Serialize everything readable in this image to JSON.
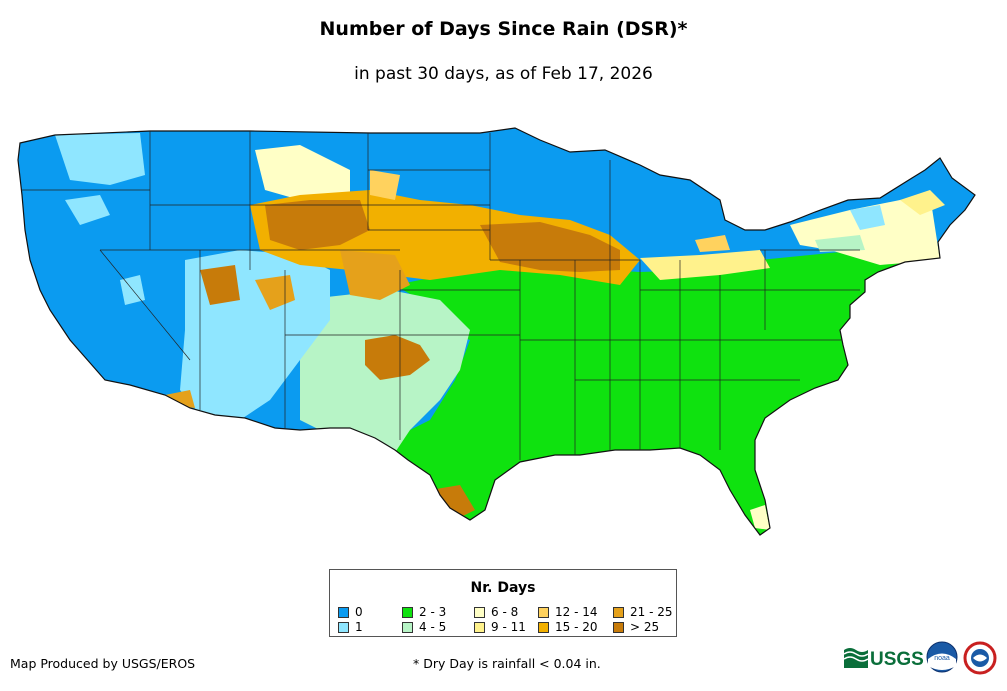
{
  "header": {
    "title": "Number of Days Since Rain (DSR)*",
    "subtitle": "in past 30 days, as of Feb 17, 2026"
  },
  "map": {
    "region": "Contiguous United States",
    "colors": {
      "c0": "#0b9bf0",
      "c1": "#8fe6ff",
      "c2": "#0fe20f",
      "c4": "#b7f4c6",
      "c6": "#ffffc6",
      "c9": "#fff28c",
      "c12": "#ffd25e",
      "c15": "#f2b000",
      "c21": "#e5a11b",
      "c25": "#c77b0a"
    }
  },
  "legend": {
    "title": "Nr. Days",
    "items": [
      {
        "label": "0",
        "color": "#0b9bf0"
      },
      {
        "label": "1",
        "color": "#8fe6ff"
      },
      {
        "label": "2 - 3",
        "color": "#0fe20f"
      },
      {
        "label": "4 - 5",
        "color": "#b7f4c6"
      },
      {
        "label": "6 - 8",
        "color": "#ffffc6"
      },
      {
        "label": "9 - 11",
        "color": "#fff28c"
      },
      {
        "label": "12 - 14",
        "color": "#ffd25e"
      },
      {
        "label": "15 - 20",
        "color": "#f2b000"
      },
      {
        "label": "21 - 25",
        "color": "#e5a11b"
      },
      {
        "label": "> 25",
        "color": "#c77b0a"
      }
    ]
  },
  "footer": {
    "credit": "Map Produced by USGS/EROS",
    "note": "* Dry Day is rainfall < 0.04 in.",
    "usgs_logo_text": "USGS",
    "noaa_logo_text": "noaa"
  }
}
